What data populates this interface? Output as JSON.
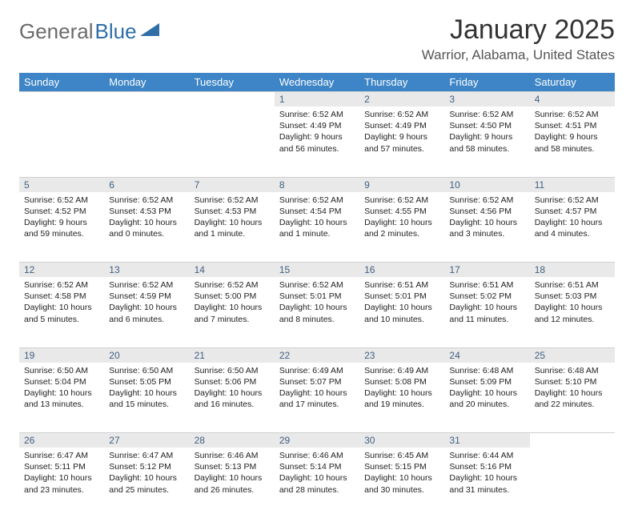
{
  "logo": {
    "textA": "General",
    "textB": "Blue",
    "colorA": "#6b6b6b",
    "colorB": "#2f6fa8",
    "triangle_color": "#2f6fa8"
  },
  "title": "January 2025",
  "subtitle": "Warrior, Alabama, United States",
  "header_row": {
    "bg": "#3d85c6",
    "fg": "#ffffff"
  },
  "daynum_row": {
    "bg": "#e9e9e9",
    "fg": "#406080"
  },
  "day_labels": [
    "Sunday",
    "Monday",
    "Tuesday",
    "Wednesday",
    "Thursday",
    "Friday",
    "Saturday"
  ],
  "weeks": [
    [
      null,
      null,
      null,
      {
        "n": "1",
        "sunrise": "6:52 AM",
        "sunset": "4:49 PM",
        "day": "9 hours and 56 minutes."
      },
      {
        "n": "2",
        "sunrise": "6:52 AM",
        "sunset": "4:49 PM",
        "day": "9 hours and 57 minutes."
      },
      {
        "n": "3",
        "sunrise": "6:52 AM",
        "sunset": "4:50 PM",
        "day": "9 hours and 58 minutes."
      },
      {
        "n": "4",
        "sunrise": "6:52 AM",
        "sunset": "4:51 PM",
        "day": "9 hours and 58 minutes."
      }
    ],
    [
      {
        "n": "5",
        "sunrise": "6:52 AM",
        "sunset": "4:52 PM",
        "day": "9 hours and 59 minutes."
      },
      {
        "n": "6",
        "sunrise": "6:52 AM",
        "sunset": "4:53 PM",
        "day": "10 hours and 0 minutes."
      },
      {
        "n": "7",
        "sunrise": "6:52 AM",
        "sunset": "4:53 PM",
        "day": "10 hours and 1 minute."
      },
      {
        "n": "8",
        "sunrise": "6:52 AM",
        "sunset": "4:54 PM",
        "day": "10 hours and 1 minute."
      },
      {
        "n": "9",
        "sunrise": "6:52 AM",
        "sunset": "4:55 PM",
        "day": "10 hours and 2 minutes."
      },
      {
        "n": "10",
        "sunrise": "6:52 AM",
        "sunset": "4:56 PM",
        "day": "10 hours and 3 minutes."
      },
      {
        "n": "11",
        "sunrise": "6:52 AM",
        "sunset": "4:57 PM",
        "day": "10 hours and 4 minutes."
      }
    ],
    [
      {
        "n": "12",
        "sunrise": "6:52 AM",
        "sunset": "4:58 PM",
        "day": "10 hours and 5 minutes."
      },
      {
        "n": "13",
        "sunrise": "6:52 AM",
        "sunset": "4:59 PM",
        "day": "10 hours and 6 minutes."
      },
      {
        "n": "14",
        "sunrise": "6:52 AM",
        "sunset": "5:00 PM",
        "day": "10 hours and 7 minutes."
      },
      {
        "n": "15",
        "sunrise": "6:52 AM",
        "sunset": "5:01 PM",
        "day": "10 hours and 8 minutes."
      },
      {
        "n": "16",
        "sunrise": "6:51 AM",
        "sunset": "5:01 PM",
        "day": "10 hours and 10 minutes."
      },
      {
        "n": "17",
        "sunrise": "6:51 AM",
        "sunset": "5:02 PM",
        "day": "10 hours and 11 minutes."
      },
      {
        "n": "18",
        "sunrise": "6:51 AM",
        "sunset": "5:03 PM",
        "day": "10 hours and 12 minutes."
      }
    ],
    [
      {
        "n": "19",
        "sunrise": "6:50 AM",
        "sunset": "5:04 PM",
        "day": "10 hours and 13 minutes."
      },
      {
        "n": "20",
        "sunrise": "6:50 AM",
        "sunset": "5:05 PM",
        "day": "10 hours and 15 minutes."
      },
      {
        "n": "21",
        "sunrise": "6:50 AM",
        "sunset": "5:06 PM",
        "day": "10 hours and 16 minutes."
      },
      {
        "n": "22",
        "sunrise": "6:49 AM",
        "sunset": "5:07 PM",
        "day": "10 hours and 17 minutes."
      },
      {
        "n": "23",
        "sunrise": "6:49 AM",
        "sunset": "5:08 PM",
        "day": "10 hours and 19 minutes."
      },
      {
        "n": "24",
        "sunrise": "6:48 AM",
        "sunset": "5:09 PM",
        "day": "10 hours and 20 minutes."
      },
      {
        "n": "25",
        "sunrise": "6:48 AM",
        "sunset": "5:10 PM",
        "day": "10 hours and 22 minutes."
      }
    ],
    [
      {
        "n": "26",
        "sunrise": "6:47 AM",
        "sunset": "5:11 PM",
        "day": "10 hours and 23 minutes."
      },
      {
        "n": "27",
        "sunrise": "6:47 AM",
        "sunset": "5:12 PM",
        "day": "10 hours and 25 minutes."
      },
      {
        "n": "28",
        "sunrise": "6:46 AM",
        "sunset": "5:13 PM",
        "day": "10 hours and 26 minutes."
      },
      {
        "n": "29",
        "sunrise": "6:46 AM",
        "sunset": "5:14 PM",
        "day": "10 hours and 28 minutes."
      },
      {
        "n": "30",
        "sunrise": "6:45 AM",
        "sunset": "5:15 PM",
        "day": "10 hours and 30 minutes."
      },
      {
        "n": "31",
        "sunrise": "6:44 AM",
        "sunset": "5:16 PM",
        "day": "10 hours and 31 minutes."
      },
      null
    ]
  ],
  "labels": {
    "sunrise": "Sunrise:",
    "sunset": "Sunset:",
    "daylight": "Daylight:"
  }
}
